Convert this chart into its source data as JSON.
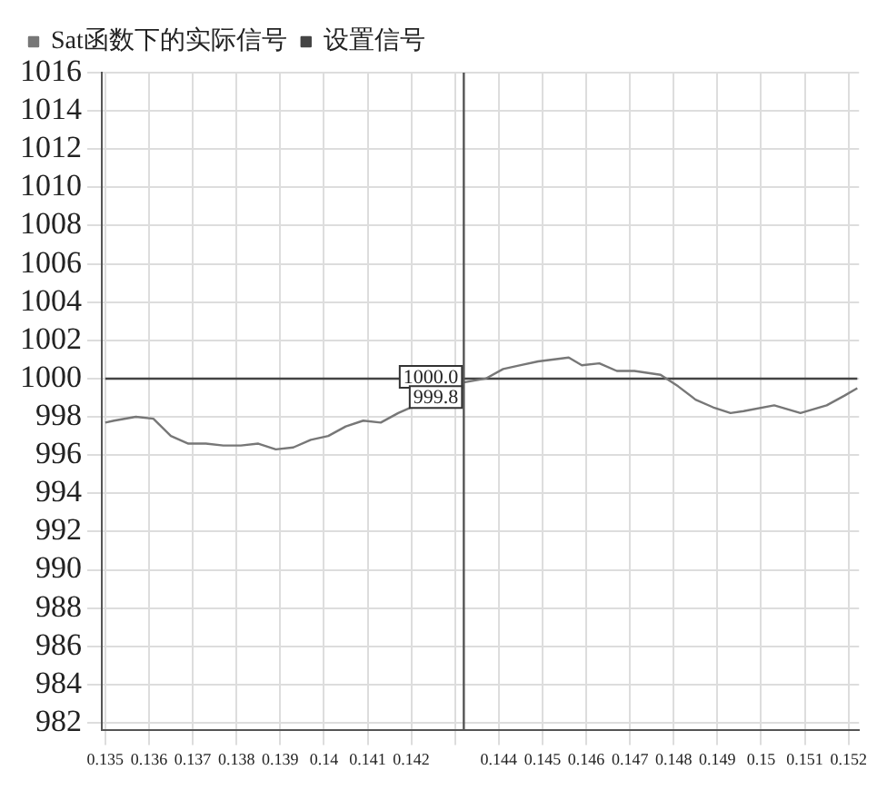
{
  "chart_data": {
    "type": "line",
    "x": [
      0.135,
      0.1352,
      0.1357,
      0.1361,
      0.1365,
      0.1369,
      0.1373,
      0.1377,
      0.1381,
      0.1385,
      0.1389,
      0.1393,
      0.1397,
      0.1401,
      0.1405,
      0.1409,
      0.1413,
      0.1417,
      0.1421,
      0.1425,
      0.1429,
      0.1432,
      0.1437,
      0.1441,
      0.1445,
      0.1449,
      0.1456,
      0.1459,
      0.1463,
      0.1467,
      0.1471,
      0.1477,
      0.1481,
      0.1485,
      0.1489,
      0.1493,
      0.1496,
      0.1503,
      0.1509,
      0.1515,
      0.1519,
      0.1522
    ],
    "series": [
      {
        "name": "Sat函数下的实际信号",
        "color": "#777777",
        "values": [
          997.7,
          997.8,
          998.0,
          997.9,
          997.0,
          996.6,
          996.6,
          996.5,
          996.5,
          996.6,
          996.3,
          996.4,
          996.8,
          997.0,
          997.5,
          997.8,
          997.7,
          998.2,
          998.6,
          null,
          null,
          999.8,
          1000.0,
          1000.5,
          1000.7,
          1000.9,
          1001.1,
          1000.7,
          1000.8,
          1000.4,
          1000.4,
          1000.2,
          999.6,
          998.9,
          998.5,
          998.2,
          998.3,
          998.6,
          998.2,
          998.6,
          999.1,
          999.5
        ]
      },
      {
        "name": "设置信号",
        "color": "#444444",
        "x": [
          0.135,
          0.1522
        ],
        "values": [
          1000,
          1000
        ]
      }
    ],
    "xlim": [
      0.13492,
      0.15224
    ],
    "xticks": [
      0.135,
      0.136,
      0.137,
      0.138,
      0.139,
      0.14,
      0.141,
      0.142,
      {
        "value": 0.143,
        "label": null
      },
      0.144,
      0.145,
      0.146,
      0.147,
      0.148,
      0.149,
      0.15,
      0.151,
      0.152
    ],
    "ylim": [
      981.6,
      1016
    ],
    "yticks": [
      982,
      984,
      986,
      988,
      990,
      992,
      994,
      996,
      998,
      1000,
      1002,
      1004,
      1006,
      1008,
      1010,
      1012,
      1014,
      1016
    ],
    "ref_lines": [
      {
        "axis": "x",
        "value": 0.1432,
        "color": "#555555"
      }
    ],
    "annotations": [
      {
        "text": "1000.0",
        "x": 0.1432,
        "y": 1000
      },
      {
        "text": "999.8",
        "x": 0.1432,
        "y": 999.8
      }
    ],
    "grid": true,
    "legend": "top left",
    "marker": "none",
    "line_style": "solid"
  }
}
